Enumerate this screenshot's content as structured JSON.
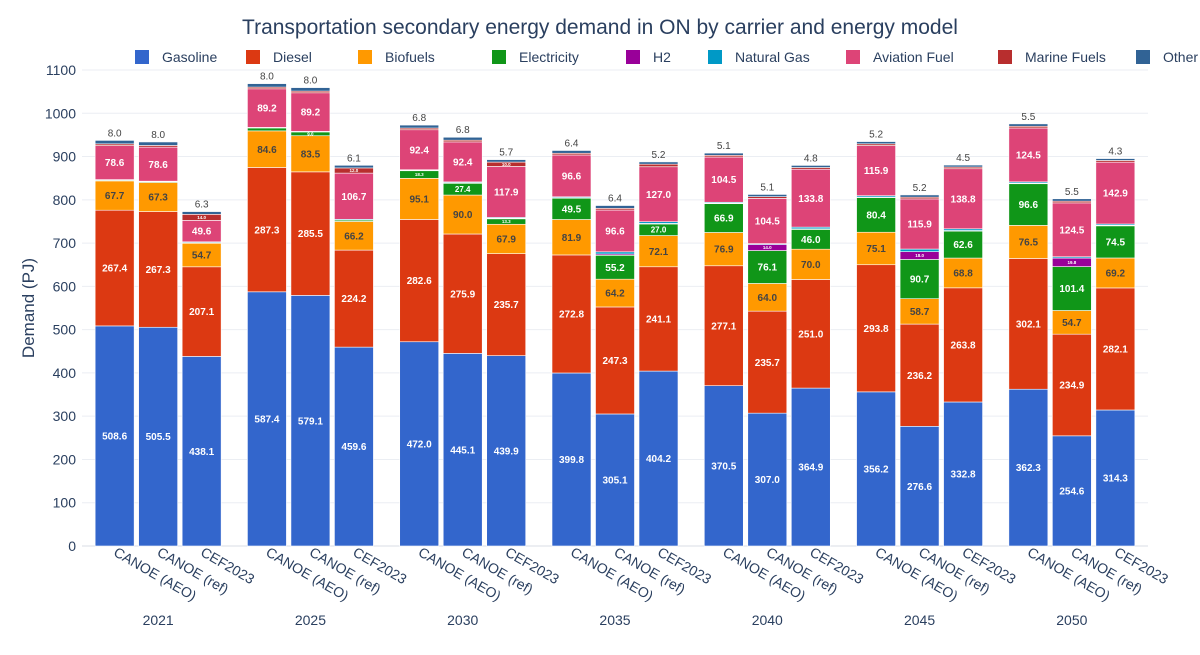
{
  "chart_data": {
    "type": "bar",
    "stacked": true,
    "title": "Transportation secondary energy demand in ON by carrier and energy model",
    "xlabel": "",
    "ylabel": "Demand (PJ)",
    "ylim": [
      0,
      1100
    ],
    "yticks": [
      0,
      100,
      200,
      300,
      400,
      500,
      600,
      700,
      800,
      900,
      1000,
      1100
    ],
    "grid": true,
    "legend_position": "top",
    "years": [
      "2021",
      "2025",
      "2030",
      "2035",
      "2040",
      "2045",
      "2050"
    ],
    "models": [
      "CANOE (AEO)",
      "CANOE (ref)",
      "CEF2023"
    ],
    "series": [
      {
        "name": "Gasoline",
        "color": "#3366cc",
        "label_color": "#ffffff",
        "values": [
          508.6,
          505.5,
          438.1,
          587.4,
          579.1,
          459.6,
          472.0,
          445.1,
          439.9,
          399.8,
          305.1,
          404.2,
          370.5,
          307.0,
          364.9,
          356.2,
          276.6,
          332.8,
          362.3,
          254.6,
          314.3
        ]
      },
      {
        "name": "Diesel",
        "color": "#dc3912",
        "label_color": "#ffffff",
        "values": [
          267.4,
          267.3,
          207.1,
          287.3,
          285.5,
          224.2,
          282.6,
          275.9,
          235.7,
          272.8,
          247.3,
          241.1,
          277.1,
          235.7,
          251.0,
          293.8,
          236.2,
          263.8,
          302.1,
          234.9,
          282.1
        ]
      },
      {
        "name": "Biofuels",
        "color": "#ff9900",
        "label_color": "#444444",
        "values": [
          67.7,
          67.3,
          54.7,
          84.6,
          83.5,
          66.2,
          95.1,
          90.0,
          67.9,
          81.9,
          64.2,
          72.1,
          76.9,
          64.0,
          70.0,
          75.1,
          58.7,
          68.8,
          76.5,
          54.7,
          69.2
        ]
      },
      {
        "name": "Electricity",
        "color": "#109618",
        "label_color": "#ffffff",
        "values": [
          2.0,
          2.0,
          1.0,
          7.0,
          9.0,
          3.0,
          18.3,
          27.4,
          13.3,
          49.5,
          55.2,
          27.0,
          66.9,
          76.1,
          46.0,
          80.4,
          90.7,
          62.6,
          96.6,
          101.4,
          74.5
        ]
      },
      {
        "name": "H2",
        "color": "#990099",
        "label_color": "#ffffff",
        "values": [
          0,
          0,
          0,
          0,
          0,
          0,
          0.5,
          1.0,
          0.5,
          1.0,
          3.0,
          1.0,
          1.0,
          14.0,
          1.0,
          1.0,
          18.0,
          1.0,
          1.0,
          19.8,
          1.0
        ]
      },
      {
        "name": "Natural Gas",
        "color": "#0099c6",
        "label_color": "#ffffff",
        "values": [
          1.0,
          1.0,
          2.0,
          1.0,
          1.0,
          2.0,
          1.0,
          2.0,
          2.0,
          2.0,
          5.0,
          4.0,
          2.0,
          2.0,
          4.0,
          3.0,
          6.0,
          4.0,
          3.0,
          3.0,
          3.0
        ]
      },
      {
        "name": "Aviation Fuel",
        "color": "#dd4477",
        "label_color": "#ffffff",
        "values": [
          78.6,
          78.6,
          49.6,
          89.2,
          89.2,
          106.7,
          92.4,
          92.4,
          117.9,
          96.6,
          96.6,
          127.0,
          104.5,
          104.5,
          133.8,
          115.9,
          115.9,
          138.8,
          124.5,
          124.5,
          142.9
        ]
      },
      {
        "name": "Marine Fuels",
        "color": "#b82e2e",
        "label_color": "#ffffff",
        "values": [
          4.0,
          4.0,
          14.0,
          4.0,
          4.0,
          12.0,
          4.0,
          4.0,
          10.0,
          4.0,
          4.0,
          6.0,
          4.0,
          4.0,
          4.0,
          4.0,
          4.0,
          4.0,
          4.0,
          4.0,
          4.0
        ]
      },
      {
        "name": "Other",
        "color": "#316395",
        "label_color": "#ffffff",
        "values": [
          8.0,
          8.0,
          6.3,
          8.0,
          8.0,
          6.1,
          6.8,
          6.8,
          5.7,
          6.4,
          6.4,
          5.2,
          5.1,
          5.1,
          4.8,
          5.2,
          5.2,
          4.5,
          5.5,
          5.5,
          4.3
        ]
      }
    ],
    "top_labels": [
      "8.0",
      "8.0",
      "6.3",
      "8.0",
      "8.0",
      "6.1",
      "6.8",
      "6.8",
      "5.7",
      "6.4",
      "6.4",
      "5.2",
      "5.1",
      "5.1",
      "4.8",
      "5.2",
      "5.2",
      "4.5",
      "5.5",
      "5.5",
      "4.3"
    ]
  }
}
